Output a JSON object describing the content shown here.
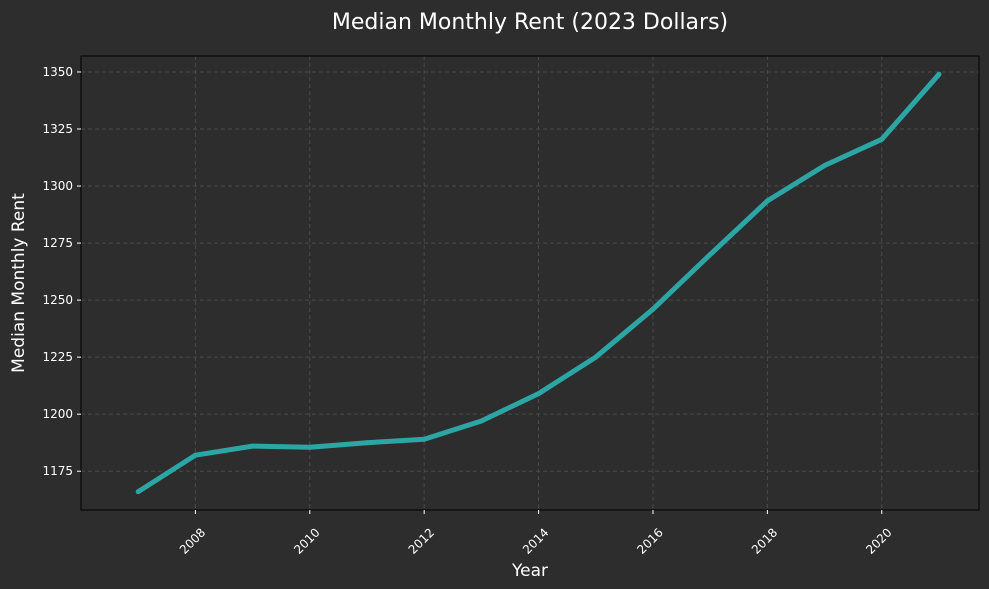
{
  "chart_data": {
    "type": "line",
    "title": "Median Monthly Rent (2023 Dollars)",
    "xlabel": "Year",
    "ylabel": "Median Monthly Rent",
    "xlim": [
      2006.0,
      2021.7
    ],
    "ylim": [
      1158,
      1357
    ],
    "xticks": [
      2008,
      2010,
      2012,
      2014,
      2016,
      2018,
      2020
    ],
    "yticks": [
      1175,
      1200,
      1225,
      1250,
      1275,
      1300,
      1325,
      1350
    ],
    "grid": true,
    "colors": {
      "background": "#2d2d2d",
      "line": "#2ca6a4",
      "text": "#ffffff"
    },
    "series": [
      {
        "x": [
          2007,
          2008,
          2009,
          2010,
          2011,
          2012,
          2013,
          2014,
          2015,
          2016,
          2017,
          2018,
          2019,
          2020,
          2021
        ],
        "values": [
          1166,
          1182,
          1186,
          1185.5,
          1187.5,
          1189,
          1197,
          1209,
          1225,
          1246,
          1270,
          1293.5,
          1309,
          1320.5,
          1349
        ]
      }
    ]
  }
}
